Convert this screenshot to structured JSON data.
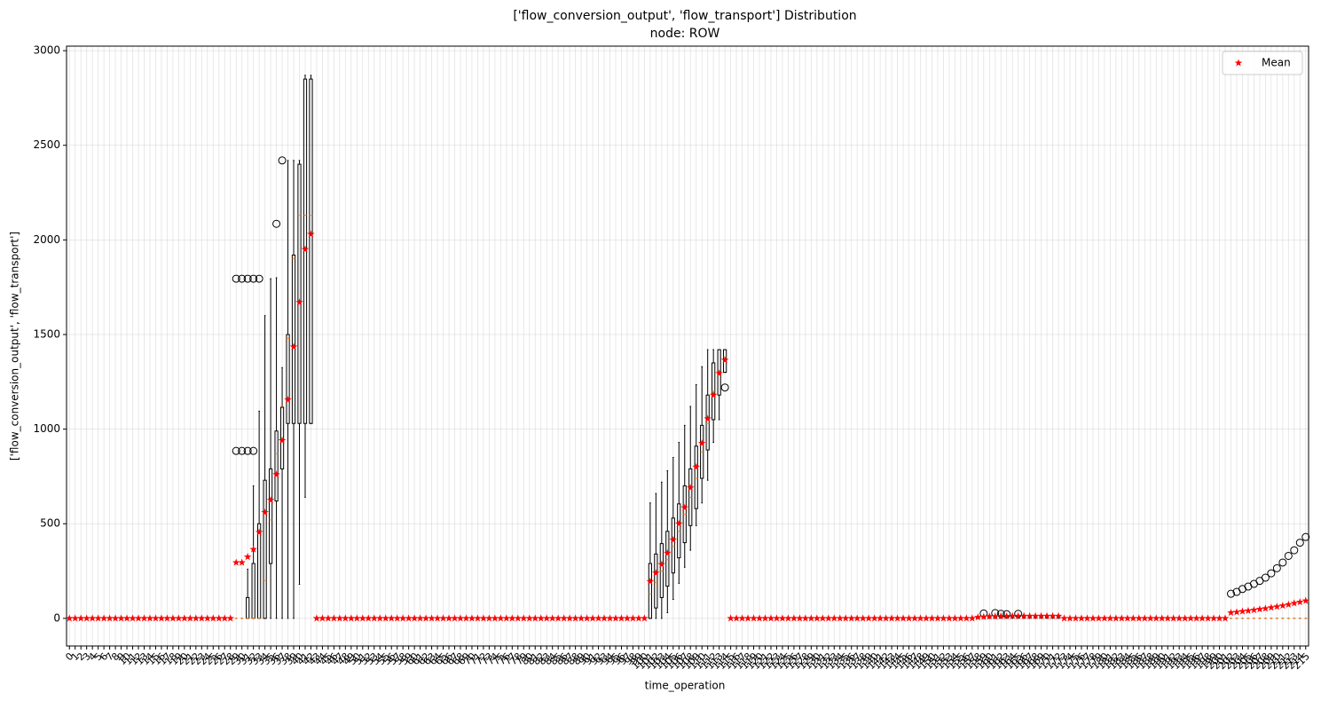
{
  "chart_data": {
    "type": "box",
    "title": "['flow_conversion_output', 'flow_transport'] Distribution",
    "subtitle": "node: ROW",
    "xlabel": "time_operation",
    "ylabel": "['flow_conversion_output', 'flow_transport']",
    "categories": [
      "0",
      "1",
      "2",
      "3",
      "4",
      "5",
      "6",
      "7",
      "8",
      "9",
      "10",
      "11",
      "12",
      "13",
      "14",
      "15",
      "16",
      "17",
      "18",
      "19",
      "20",
      "21",
      "22",
      "23",
      "24",
      "25",
      "26",
      "27",
      "28",
      "29",
      "30",
      "31",
      "32",
      "33",
      "34",
      "35",
      "36",
      "37",
      "38",
      "39",
      "40",
      "41",
      "42",
      "43",
      "44",
      "45",
      "46",
      "47",
      "48",
      "49",
      "50",
      "51",
      "52",
      "53",
      "54",
      "55",
      "56",
      "57",
      "58",
      "59",
      "60",
      "61",
      "62",
      "63",
      "64",
      "65",
      "66",
      "67",
      "68",
      "69",
      "70",
      "71",
      "72",
      "73",
      "74",
      "75",
      "76",
      "77",
      "78",
      "79",
      "80",
      "81",
      "82",
      "83",
      "84",
      "85",
      "86",
      "87",
      "88",
      "89",
      "90",
      "91",
      "92",
      "93",
      "94",
      "95",
      "96",
      "97",
      "98",
      "99",
      "100",
      "101",
      "102",
      "103",
      "104",
      "105",
      "106",
      "107",
      "108",
      "109",
      "110",
      "111",
      "112",
      "113",
      "114",
      "115",
      "116",
      "117",
      "118",
      "119",
      "120",
      "121",
      "122",
      "123",
      "124",
      "125",
      "126",
      "127",
      "128",
      "129",
      "130",
      "131",
      "132",
      "133",
      "134",
      "135",
      "136",
      "137",
      "138",
      "139",
      "140",
      "141",
      "142",
      "143",
      "144",
      "145",
      "146",
      "147",
      "148",
      "149",
      "150",
      "151",
      "152",
      "153",
      "154",
      "155",
      "156",
      "157",
      "158",
      "159",
      "160",
      "161",
      "162",
      "163",
      "164",
      "165",
      "166",
      "167",
      "168",
      "169",
      "170",
      "171",
      "172",
      "173",
      "174",
      "175",
      "176",
      "177",
      "178",
      "179",
      "180",
      "181",
      "182",
      "183",
      "184",
      "185",
      "186",
      "187",
      "188",
      "189",
      "190",
      "191",
      "192",
      "193",
      "194",
      "195",
      "196",
      "197",
      "198",
      "199",
      "200",
      "201",
      "202",
      "203",
      "204",
      "205",
      "206",
      "207",
      "208",
      "209",
      "210",
      "211",
      "212",
      "213",
      "214",
      "215"
    ],
    "means": [
      0,
      0,
      0,
      0,
      0,
      0,
      0,
      0,
      0,
      0,
      0,
      0,
      0,
      0,
      0,
      0,
      0,
      0,
      0,
      0,
      0,
      0,
      0,
      0,
      0,
      0,
      0,
      0,
      0,
      295,
      295,
      325,
      365,
      455,
      560,
      625,
      760,
      940,
      1155,
      1435,
      1670,
      1950,
      2030,
      0,
      0,
      0,
      0,
      0,
      0,
      0,
      0,
      0,
      0,
      0,
      0,
      0,
      0,
      0,
      0,
      0,
      0,
      0,
      0,
      0,
      0,
      0,
      0,
      0,
      0,
      0,
      0,
      0,
      0,
      0,
      0,
      0,
      0,
      0,
      0,
      0,
      0,
      0,
      0,
      0,
      0,
      0,
      0,
      0,
      0,
      0,
      0,
      0,
      0,
      0,
      0,
      0,
      0,
      0,
      0,
      0,
      0,
      195,
      240,
      285,
      345,
      415,
      500,
      585,
      690,
      800,
      925,
      1055,
      1180,
      1295,
      1365,
      0,
      0,
      0,
      0,
      0,
      0,
      0,
      0,
      0,
      0,
      0,
      0,
      0,
      0,
      0,
      0,
      0,
      0,
      0,
      0,
      0,
      0,
      0,
      0,
      0,
      0,
      0,
      0,
      0,
      0,
      0,
      0,
      0,
      0,
      0,
      0,
      0,
      0,
      0,
      0,
      0,
      0,
      0,
      6,
      8,
      10,
      10,
      11,
      11,
      12,
      12,
      12,
      12,
      12,
      12,
      12,
      12,
      12,
      0,
      0,
      0,
      0,
      0,
      0,
      0,
      0,
      0,
      0,
      0,
      0,
      0,
      0,
      0,
      0,
      0,
      0,
      0,
      0,
      0,
      0,
      0,
      0,
      0,
      0,
      0,
      0,
      0,
      30,
      33,
      37,
      40,
      44,
      48,
      52,
      57,
      62,
      67,
      73,
      80,
      86,
      93
    ],
    "q1": [
      0,
      0,
      0,
      0,
      0,
      0,
      0,
      0,
      0,
      0,
      0,
      0,
      0,
      0,
      0,
      0,
      0,
      0,
      0,
      0,
      0,
      0,
      0,
      0,
      0,
      0,
      0,
      0,
      0,
      0,
      0,
      0,
      0,
      0,
      0,
      290,
      620,
      790,
      1030,
      1030,
      1030,
      1030,
      1030,
      0,
      0,
      0,
      0,
      0,
      0,
      0,
      0,
      0,
      0,
      0,
      0,
      0,
      0,
      0,
      0,
      0,
      0,
      0,
      0,
      0,
      0,
      0,
      0,
      0,
      0,
      0,
      0,
      0,
      0,
      0,
      0,
      0,
      0,
      0,
      0,
      0,
      0,
      0,
      0,
      0,
      0,
      0,
      0,
      0,
      0,
      0,
      0,
      0,
      0,
      0,
      0,
      0,
      0,
      0,
      0,
      0,
      0,
      0,
      55,
      110,
      170,
      240,
      320,
      400,
      490,
      580,
      740,
      890,
      1050,
      1180,
      1300,
      0,
      0,
      0,
      0,
      0,
      0,
      0,
      0,
      0,
      0,
      0,
      0,
      0,
      0,
      0,
      0,
      0,
      0,
      0,
      0,
      0,
      0,
      0,
      0,
      0,
      0,
      0,
      0,
      0,
      0,
      0,
      0,
      0,
      0,
      0,
      0,
      0,
      0,
      0,
      0,
      0,
      0,
      0,
      2,
      3,
      4,
      4,
      5,
      5,
      5,
      5,
      5,
      5,
      5,
      5,
      5,
      5,
      5,
      0,
      0,
      0,
      0,
      0,
      0,
      0,
      0,
      0,
      0,
      0,
      0,
      0,
      0,
      0,
      0,
      0,
      0,
      0,
      0,
      0,
      0,
      0,
      0,
      0,
      0,
      0,
      0,
      0,
      0,
      0,
      0,
      0,
      0,
      0,
      0,
      0,
      0,
      0,
      0,
      0,
      0,
      0
    ],
    "median": [
      0,
      0,
      0,
      0,
      0,
      0,
      0,
      0,
      0,
      0,
      0,
      0,
      0,
      0,
      0,
      0,
      0,
      0,
      0,
      0,
      0,
      0,
      0,
      0,
      0,
      0,
      0,
      0,
      0,
      0,
      0,
      0,
      0,
      0,
      200,
      520,
      870,
      1120,
      1480,
      1900,
      2130,
      2130,
      2130,
      0,
      0,
      0,
      0,
      0,
      0,
      0,
      0,
      0,
      0,
      0,
      0,
      0,
      0,
      0,
      0,
      0,
      0,
      0,
      0,
      0,
      0,
      0,
      0,
      0,
      0,
      0,
      0,
      0,
      0,
      0,
      0,
      0,
      0,
      0,
      0,
      0,
      0,
      0,
      0,
      0,
      0,
      0,
      0,
      0,
      0,
      0,
      0,
      0,
      0,
      0,
      0,
      0,
      0,
      0,
      0,
      0,
      0,
      130,
      190,
      250,
      310,
      380,
      460,
      550,
      640,
      740,
      880,
      1030,
      1200,
      1300,
      1380,
      0,
      0,
      0,
      0,
      0,
      0,
      0,
      0,
      0,
      0,
      0,
      0,
      0,
      0,
      0,
      0,
      0,
      0,
      0,
      0,
      0,
      0,
      0,
      0,
      0,
      0,
      0,
      0,
      0,
      0,
      0,
      0,
      0,
      0,
      0,
      0,
      0,
      0,
      0,
      0,
      0,
      0,
      0,
      5,
      7,
      9,
      9,
      10,
      10,
      11,
      11,
      11,
      11,
      11,
      11,
      11,
      11,
      11,
      0,
      0,
      0,
      0,
      0,
      0,
      0,
      0,
      0,
      0,
      0,
      0,
      0,
      0,
      0,
      0,
      0,
      0,
      0,
      0,
      0,
      0,
      0,
      0,
      0,
      0,
      0,
      0,
      0,
      0,
      0,
      0,
      0,
      0,
      0,
      0,
      0,
      0,
      0,
      0,
      0,
      0,
      0
    ],
    "q3": [
      0,
      0,
      0,
      0,
      0,
      0,
      0,
      0,
      0,
      0,
      0,
      0,
      0,
      0,
      0,
      0,
      0,
      0,
      0,
      0,
      0,
      0,
      0,
      0,
      0,
      0,
      0,
      0,
      0,
      0,
      0,
      110,
      290,
      500,
      730,
      790,
      990,
      1115,
      1500,
      1920,
      2400,
      2850,
      2850,
      0,
      0,
      0,
      0,
      0,
      0,
      0,
      0,
      0,
      0,
      0,
      0,
      0,
      0,
      0,
      0,
      0,
      0,
      0,
      0,
      0,
      0,
      0,
      0,
      0,
      0,
      0,
      0,
      0,
      0,
      0,
      0,
      0,
      0,
      0,
      0,
      0,
      0,
      0,
      0,
      0,
      0,
      0,
      0,
      0,
      0,
      0,
      0,
      0,
      0,
      0,
      0,
      0,
      0,
      0,
      0,
      0,
      0,
      290,
      340,
      395,
      460,
      530,
      605,
      700,
      790,
      910,
      1020,
      1180,
      1350,
      1420,
      1420,
      0,
      0,
      0,
      0,
      0,
      0,
      0,
      0,
      0,
      0,
      0,
      0,
      0,
      0,
      0,
      0,
      0,
      0,
      0,
      0,
      0,
      0,
      0,
      0,
      0,
      0,
      0,
      0,
      0,
      0,
      0,
      0,
      0,
      0,
      0,
      0,
      0,
      0,
      0,
      0,
      0,
      0,
      0,
      8,
      10,
      13,
      13,
      14,
      14,
      15,
      15,
      15,
      15,
      15,
      15,
      15,
      15,
      15,
      0,
      0,
      0,
      0,
      0,
      0,
      0,
      0,
      0,
      0,
      0,
      0,
      0,
      0,
      0,
      0,
      0,
      0,
      0,
      0,
      0,
      0,
      0,
      0,
      0,
      0,
      0,
      0,
      0,
      0,
      0,
      0,
      0,
      0,
      0,
      0,
      0,
      0,
      0,
      0,
      0,
      0,
      0
    ],
    "whislo": [
      0,
      0,
      0,
      0,
      0,
      0,
      0,
      0,
      0,
      0,
      0,
      0,
      0,
      0,
      0,
      0,
      0,
      0,
      0,
      0,
      0,
      0,
      0,
      0,
      0,
      0,
      0,
      0,
      0,
      0,
      0,
      0,
      0,
      0,
      0,
      0,
      0,
      0,
      0,
      0,
      180,
      640,
      1030,
      0,
      0,
      0,
      0,
      0,
      0,
      0,
      0,
      0,
      0,
      0,
      0,
      0,
      0,
      0,
      0,
      0,
      0,
      0,
      0,
      0,
      0,
      0,
      0,
      0,
      0,
      0,
      0,
      0,
      0,
      0,
      0,
      0,
      0,
      0,
      0,
      0,
      0,
      0,
      0,
      0,
      0,
      0,
      0,
      0,
      0,
      0,
      0,
      0,
      0,
      0,
      0,
      0,
      0,
      0,
      0,
      0,
      0,
      0,
      0,
      0,
      30,
      100,
      185,
      270,
      360,
      490,
      610,
      730,
      930,
      1050,
      1300,
      0,
      0,
      0,
      0,
      0,
      0,
      0,
      0,
      0,
      0,
      0,
      0,
      0,
      0,
      0,
      0,
      0,
      0,
      0,
      0,
      0,
      0,
      0,
      0,
      0,
      0,
      0,
      0,
      0,
      0,
      0,
      0,
      0,
      0,
      0,
      0,
      0,
      0,
      0,
      0,
      0,
      0,
      0,
      0,
      0,
      0,
      0,
      0,
      0,
      0,
      0,
      0,
      0,
      0,
      0,
      0,
      0,
      0,
      0,
      0,
      0,
      0,
      0,
      0,
      0,
      0,
      0,
      0,
      0,
      0,
      0,
      0,
      0,
      0,
      0,
      0,
      0,
      0,
      0,
      0,
      0,
      0,
      0,
      0,
      0,
      0,
      0,
      0,
      0,
      0,
      0,
      0,
      0,
      0,
      0,
      0,
      0,
      0,
      0,
      0,
      0
    ],
    "whishi": [
      0,
      0,
      0,
      0,
      0,
      0,
      0,
      0,
      0,
      0,
      0,
      0,
      0,
      0,
      0,
      0,
      0,
      0,
      0,
      0,
      0,
      0,
      0,
      0,
      0,
      0,
      0,
      0,
      0,
      0,
      0,
      260,
      700,
      1095,
      1600,
      1795,
      1800,
      1325,
      2420,
      2420,
      2420,
      2870,
      2870,
      0,
      0,
      0,
      0,
      0,
      0,
      0,
      0,
      0,
      0,
      0,
      0,
      0,
      0,
      0,
      0,
      0,
      0,
      0,
      0,
      0,
      0,
      0,
      0,
      0,
      0,
      0,
      0,
      0,
      0,
      0,
      0,
      0,
      0,
      0,
      0,
      0,
      0,
      0,
      0,
      0,
      0,
      0,
      0,
      0,
      0,
      0,
      0,
      0,
      0,
      0,
      0,
      0,
      0,
      0,
      0,
      0,
      0,
      610,
      660,
      720,
      780,
      850,
      930,
      1020,
      1120,
      1235,
      1330,
      1420,
      1420,
      1420,
      1420,
      0,
      0,
      0,
      0,
      0,
      0,
      0,
      0,
      0,
      0,
      0,
      0,
      0,
      0,
      0,
      0,
      0,
      0,
      0,
      0,
      0,
      0,
      0,
      0,
      0,
      0,
      0,
      0,
      0,
      0,
      0,
      0,
      0,
      0,
      0,
      0,
      0,
      0,
      0,
      0,
      0,
      0,
      0,
      12,
      14,
      18,
      18,
      19,
      19,
      20,
      20,
      20,
      20,
      20,
      20,
      20,
      20,
      20,
      0,
      0,
      0,
      0,
      0,
      0,
      0,
      0,
      0,
      0,
      0,
      0,
      0,
      0,
      0,
      0,
      0,
      0,
      0,
      0,
      0,
      0,
      0,
      0,
      0,
      0,
      0,
      0,
      0,
      0,
      0,
      0,
      0,
      0,
      0,
      0,
      0,
      0,
      0,
      0,
      0,
      0,
      0
    ],
    "fliers": [
      [],
      [],
      [],
      [],
      [],
      [],
      [],
      [],
      [],
      [],
      [],
      [],
      [],
      [],
      [],
      [],
      [],
      [],
      [],
      [],
      [],
      [],
      [],
      [],
      [],
      [],
      [],
      [],
      [],
      [
        885,
        1795
      ],
      [
        885,
        1795
      ],
      [
        885,
        1795
      ],
      [
        885,
        1795
      ],
      [
        1795
      ],
      [],
      [],
      [
        2085
      ],
      [
        2420
      ],
      [],
      [],
      [],
      [],
      [],
      [],
      [],
      [],
      [],
      [],
      [],
      [],
      [],
      [],
      [],
      [],
      [],
      [],
      [],
      [],
      [],
      [],
      [],
      [],
      [],
      [],
      [],
      [],
      [],
      [],
      [],
      [],
      [],
      [],
      [],
      [],
      [],
      [],
      [],
      [],
      [],
      [],
      [],
      [],
      [],
      [],
      [],
      [],
      [],
      [],
      [],
      [],
      [],
      [],
      [],
      [],
      [],
      [],
      [],
      [],
      [],
      [],
      [],
      [],
      [],
      [],
      [],
      [],
      [],
      [],
      [],
      [],
      [],
      [],
      [],
      [],
      [
        1220
      ],
      [],
      [],
      [],
      [],
      [],
      [],
      [],
      [],
      [],
      [],
      [],
      [],
      [],
      [],
      [],
      [],
      [],
      [],
      [],
      [],
      [],
      [],
      [],
      [],
      [],
      [],
      [],
      [],
      [],
      [],
      [],
      [],
      [],
      [],
      [],
      [],
      [],
      [],
      [],
      [],
      [],
      [],
      [],
      [],
      [
        26
      ],
      [],
      [
        28
      ],
      [
        24
      ],
      [
        22
      ],
      [],
      [
        24
      ],
      [],
      [],
      [],
      [],
      [],
      [],
      [],
      [],
      [],
      [],
      [],
      [],
      [],
      [],
      [],
      [],
      [],
      [],
      [],
      [],
      [],
      [],
      [],
      [],
      [],
      [],
      [],
      [],
      [],
      [],
      [],
      [],
      [],
      [],
      [],
      [],
      [
        130
      ],
      [
        140
      ],
      [
        155
      ],
      [
        168
      ],
      [
        182
      ],
      [
        198
      ],
      [
        215
      ],
      [
        238
      ],
      [
        265
      ],
      [
        295
      ],
      [
        330
      ],
      [
        360
      ],
      [
        400
      ],
      [
        430
      ]
    ],
    "ylim": [
      -146,
      3024
    ],
    "yticks": [
      0,
      500,
      1000,
      1500,
      2000,
      2500,
      3000
    ],
    "grid": true,
    "legend": {
      "label": "Mean",
      "loc": "upper right"
    },
    "mean_color": "#ff0000",
    "box_color": "#000000",
    "median_color": "#ff7f0e"
  }
}
